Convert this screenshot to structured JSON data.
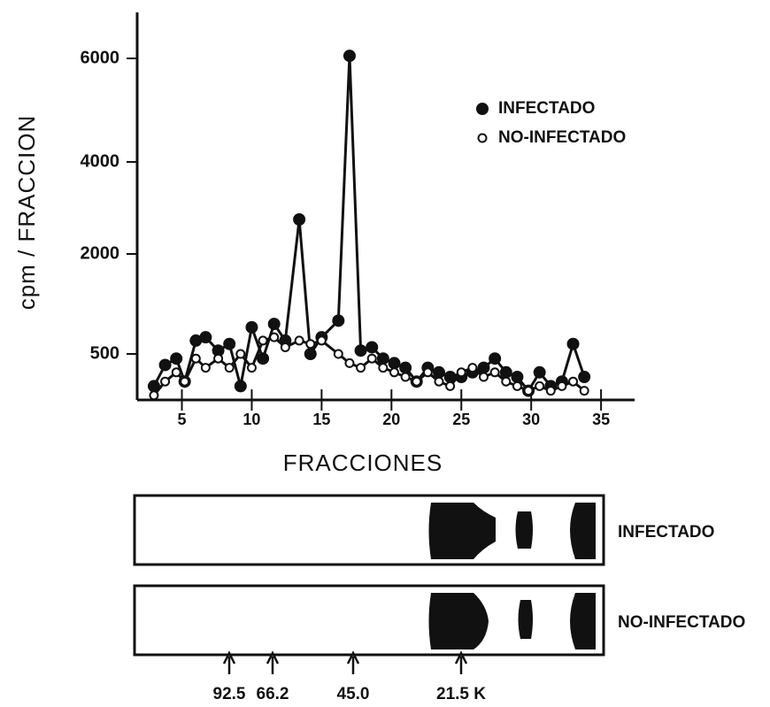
{
  "chart_data": {
    "type": "line",
    "y_label": "cpm / FRACCION",
    "x_label": "FRACCIONES",
    "x": [
      3,
      3.8,
      4.6,
      5.2,
      6,
      6.7,
      7.6,
      8.4,
      9.2,
      10,
      10.8,
      11.6,
      12.4,
      13.4,
      14.2,
      15,
      16.2,
      17,
      17.8,
      18.6,
      19.4,
      20.2,
      21,
      21.8,
      22.6,
      23.4,
      24.2,
      25,
      25.8,
      26.6,
      27.4,
      28.2,
      29,
      29.8,
      30.6,
      31.4,
      32.2,
      33,
      33.8
    ],
    "series": [
      {
        "name": "INFECTADO",
        "color": "#111111",
        "marker": "filled",
        "values": [
          150,
          380,
          450,
          200,
          700,
          750,
          550,
          650,
          150,
          900,
          450,
          950,
          700,
          2750,
          500,
          750,
          1000,
          6050,
          550,
          600,
          450,
          400,
          350,
          200,
          350,
          300,
          250,
          250,
          300,
          350,
          450,
          300,
          250,
          100,
          300,
          150,
          200,
          650,
          250
        ]
      },
      {
        "name": "NO-INFECTADO",
        "color": "#111111",
        "marker": "open",
        "values": [
          50,
          200,
          300,
          200,
          450,
          350,
          450,
          350,
          500,
          350,
          700,
          750,
          600,
          700,
          650,
          700,
          500,
          400,
          350,
          450,
          350,
          300,
          250,
          200,
          300,
          200,
          150,
          300,
          350,
          250,
          300,
          200,
          150,
          100,
          150,
          100,
          150,
          200,
          100
        ]
      }
    ],
    "xlim": [
      1.8,
      37.4
    ],
    "xticks": [
      5,
      10,
      15,
      20,
      25,
      30,
      35
    ],
    "ylim": [
      0,
      6800
    ],
    "yticks": [
      500,
      2000,
      4000,
      6000
    ],
    "legend": "upper right"
  },
  "gel": {
    "lanes": [
      "INFECTADO",
      "NO-INFECTADO"
    ],
    "markers": [
      "92.5",
      "66.2",
      "45.0",
      "21.5 K"
    ]
  }
}
